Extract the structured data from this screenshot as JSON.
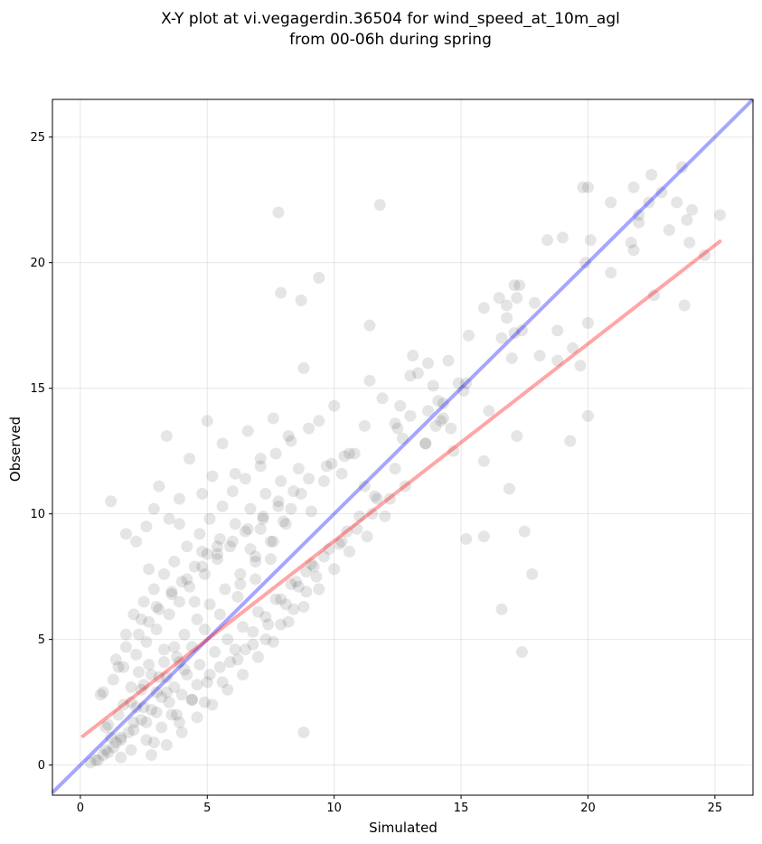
{
  "chart_data": {
    "type": "scatter",
    "title": [
      "X-Y plot at vi.vegagerdin.36504 for wind_speed_at_10m_agl",
      "from 00-06h during spring"
    ],
    "xlabel": "Simulated",
    "ylabel": "Observed",
    "xlim": [
      -1.1,
      26.5
    ],
    "ylim": [
      -1.2,
      26.5
    ],
    "xticks": [
      0,
      5,
      10,
      15,
      20,
      25
    ],
    "yticks": [
      0,
      5,
      10,
      15,
      20,
      25
    ],
    "grid": true,
    "legend": "none",
    "colors": {
      "points": "#000000",
      "identity_line": "#0000ff",
      "fit_line": "#ff0000"
    },
    "identity_line": {
      "x": [
        -1.1,
        26.5
      ],
      "y": [
        -1.1,
        26.5
      ]
    },
    "fit_line": {
      "x": [
        0.1,
        25.2
      ],
      "y": [
        1.15,
        20.85
      ]
    },
    "points": {
      "x": [
        22.0,
        20.9,
        22.5,
        21.8,
        23.7,
        23.9,
        22.9,
        21.8,
        20.1,
        21.7,
        23.5,
        22.0,
        24.1,
        23.2,
        24.0,
        22.6,
        25.2,
        24.6,
        23.8,
        19.8,
        20.0,
        19.0,
        20.9,
        18.4,
        19.9,
        22.4,
        20.0,
        19.7,
        18.8,
        19.4,
        18.8,
        20.0,
        19.3,
        17.9,
        17.1,
        17.2,
        16.8,
        17.3,
        16.5,
        16.8,
        17.1,
        17.0,
        18.1,
        17.4,
        16.6,
        15.9,
        15.3,
        15.1,
        16.1,
        14.9,
        14.7,
        14.3,
        15.9,
        15.9,
        16.9,
        17.5,
        17.8,
        17.4,
        16.6,
        17.2,
        15.2,
        13.7,
        13.9,
        14.2,
        14.5,
        13.1,
        12.6,
        13.0,
        13.3,
        13.7,
        14.0,
        14.3,
        13.6,
        12.7,
        12.4,
        11.4,
        11.8,
        9.4,
        8.7,
        7.9,
        7.8,
        11.4,
        5.0,
        3.4,
        1.2,
        1.8,
        2.2,
        2.6,
        2.9,
        3.1,
        3.5,
        3.9,
        4.3,
        4.8,
        5.2,
        5.6,
        6.1,
        6.6,
        7.1,
        7.6,
        8.2,
        8.8,
        9.4,
        10.0,
        10.6,
        11.2,
        11.9,
        12.5,
        13.0,
        13.6,
        14.1,
        14.6,
        15.2,
        4.8,
        5.4,
        3.9,
        2.7,
        4.5,
        6.3,
        6.9,
        7.5,
        7.1,
        6.7,
        8.0,
        8.3,
        8.7,
        9.1,
        9.6,
        9.9,
        10.3,
        10.8,
        11.2,
        11.6,
        12.0,
        12.4,
        9.3,
        8.9,
        8.4,
        7.9,
        7.3,
        6.5,
        5.9,
        5.1,
        4.6,
        4.0,
        3.5,
        3.0,
        2.6,
        2.1,
        1.6,
        1.3,
        0.9,
        0.6,
        0.4,
        1.1,
        1.4,
        1.9,
        2.4,
        2.8,
        3.2,
        3.7,
        4.2,
        4.7,
        5.3,
        5.8,
        6.4,
        7.0,
        7.7,
        8.3,
        8.9,
        9.6,
        10.3,
        10.9,
        11.5,
        12.2,
        12.8,
        2.0,
        2.3,
        2.7,
        3.1,
        3.4,
        3.8,
        4.1,
        4.4,
        1.5,
        1.7,
        2.5,
        3.3,
        3.6,
        1.0,
        0.8,
        1.2,
        2.2,
        2.9,
        3.9,
        4.9,
        5.6,
        6.2,
        6.8,
        7.4,
        8.1,
        8.6,
        9.2,
        9.8,
        10.5,
        11.0,
        11.7,
        2.8,
        3.4,
        4.0,
        4.6,
        5.2,
        5.8,
        6.4,
        7.0,
        7.6,
        8.2,
        8.8,
        9.4,
        10.0,
        10.6,
        11.3,
        1.8,
        2.4,
        3.0,
        3.6,
        4.2,
        4.8,
        5.4,
        6.0,
        6.6,
        7.2,
        7.8,
        8.4,
        9.0,
        9.7,
        10.4,
        1.6,
        2.0,
        2.6,
        3.2,
        3.8,
        4.4,
        5.0,
        5.5,
        6.1,
        6.8,
        7.3,
        7.9,
        8.5,
        9.1,
        10.2,
        2.1,
        2.5,
        2.9,
        3.3,
        3.7,
        4.2,
        4.7,
        5.1,
        5.6,
        6.0,
        6.5,
        7.1,
        7.7,
        8.3,
        9.0,
        1.4,
        1.8,
        2.3,
        2.7,
        3.1,
        3.6,
        4.0,
        4.5,
        5.0,
        5.5,
        6.1,
        6.7,
        7.3,
        7.9,
        8.6,
        0.9,
        1.3,
        1.7,
        2.2,
        2.6,
        3.0,
        3.5,
        3.9,
        4.3,
        4.9,
        5.4,
        5.9,
        6.5,
        7.2,
        7.8,
        1.1,
        1.5,
        2.0,
        2.4,
        2.8,
        3.3,
        3.7,
        4.1,
        4.6,
        5.1,
        5.7,
        6.3,
        6.9,
        7.6,
        8.1,
        0.7,
        1.0,
        1.6,
        2.1,
        2.5,
        3.0,
        3.4,
        3.9,
        4.4,
        4.9,
        5.5,
        6.2,
        6.9,
        7.5,
        8.8
      ],
      "y": [
        21.9,
        22.4,
        23.5,
        23.0,
        23.8,
        21.7,
        22.8,
        20.5,
        20.9,
        20.8,
        22.4,
        21.6,
        22.1,
        21.3,
        20.8,
        18.7,
        21.9,
        20.3,
        18.3,
        23.0,
        23.0,
        21.0,
        19.6,
        20.9,
        20.0,
        22.4,
        17.6,
        15.9,
        16.1,
        16.6,
        17.3,
        13.9,
        12.9,
        18.4,
        19.1,
        18.6,
        18.3,
        19.1,
        18.6,
        17.8,
        17.2,
        16.2,
        16.3,
        17.3,
        17.0,
        18.2,
        17.1,
        14.9,
        14.1,
        15.2,
        12.5,
        13.8,
        12.1,
        9.1,
        11.0,
        9.3,
        7.6,
        4.5,
        6.2,
        13.1,
        9.0,
        16.0,
        15.1,
        13.7,
        16.1,
        16.3,
        14.3,
        13.9,
        15.6,
        14.1,
        13.5,
        14.4,
        12.8,
        13.0,
        13.6,
        17.5,
        22.3,
        19.4,
        18.5,
        18.8,
        22.0,
        15.3,
        13.7,
        13.1,
        10.5,
        9.2,
        8.9,
        9.5,
        10.2,
        11.1,
        9.8,
        10.6,
        12.2,
        10.8,
        11.5,
        12.8,
        11.6,
        13.3,
        12.2,
        13.8,
        13.1,
        15.8,
        13.7,
        14.3,
        12.4,
        13.5,
        14.6,
        13.4,
        15.5,
        12.8,
        14.5,
        13.4,
        15.2,
        8.5,
        8.7,
        9.6,
        7.8,
        6.5,
        7.2,
        8.1,
        8.9,
        9.4,
        8.6,
        9.7,
        10.2,
        10.8,
        10.1,
        11.3,
        12.0,
        11.6,
        12.4,
        11.1,
        10.7,
        9.9,
        11.8,
        7.5,
        6.9,
        6.2,
        5.6,
        5.0,
        4.6,
        4.1,
        3.6,
        3.2,
        2.8,
        2.5,
        2.1,
        1.7,
        1.4,
        1.0,
        0.7,
        0.4,
        0.2,
        0.1,
        0.5,
        0.9,
        1.3,
        1.8,
        2.2,
        2.7,
        3.1,
        3.6,
        4.0,
        4.5,
        5.0,
        5.5,
        6.1,
        6.6,
        7.2,
        7.7,
        8.3,
        8.9,
        9.4,
        10.0,
        10.6,
        11.1,
        3.1,
        3.7,
        4.0,
        3.5,
        2.9,
        4.3,
        3.8,
        2.6,
        3.9,
        2.4,
        3.2,
        4.6,
        2.0,
        1.5,
        2.8,
        1.1,
        2.3,
        0.9,
        1.7,
        2.5,
        3.3,
        4.2,
        4.8,
        5.6,
        6.4,
        7.1,
        7.9,
        8.6,
        9.3,
        9.9,
        10.6,
        0.4,
        0.8,
        1.3,
        1.9,
        2.4,
        3.0,
        3.6,
        4.3,
        4.9,
        5.7,
        6.3,
        7.0,
        7.8,
        8.5,
        9.1,
        5.2,
        5.8,
        6.3,
        6.9,
        7.4,
        7.9,
        8.4,
        8.9,
        9.4,
        9.8,
        10.3,
        10.9,
        11.4,
        11.9,
        12.3,
        0.3,
        0.6,
        1.0,
        1.5,
        2.0,
        2.6,
        3.3,
        3.9,
        4.6,
        5.3,
        5.9,
        6.6,
        7.3,
        8.0,
        8.8,
        6.0,
        6.5,
        7.0,
        7.6,
        8.1,
        8.7,
        9.2,
        9.8,
        10.3,
        10.9,
        11.4,
        11.9,
        12.4,
        12.9,
        13.4,
        4.2,
        4.7,
        5.2,
        5.7,
        6.2,
        6.8,
        7.3,
        7.9,
        8.4,
        9.0,
        9.6,
        10.2,
        10.8,
        11.3,
        11.8,
        2.9,
        3.4,
        3.9,
        4.4,
        4.9,
        5.4,
        6.0,
        6.5,
        7.1,
        7.6,
        8.2,
        8.7,
        9.3,
        9.9,
        10.5,
        1.6,
        2.0,
        2.5,
        3.0,
        3.6,
        4.1,
        4.7,
        5.2,
        5.8,
        6.4,
        7.0,
        7.6,
        8.3,
        8.9,
        9.6,
        0.2,
        0.6,
        1.1,
        1.7,
        2.3,
        2.9,
        3.5,
        4.1,
        4.7,
        5.4,
        6.0,
        6.7,
        7.4,
        8.2,
        1.3
      ]
    }
  }
}
